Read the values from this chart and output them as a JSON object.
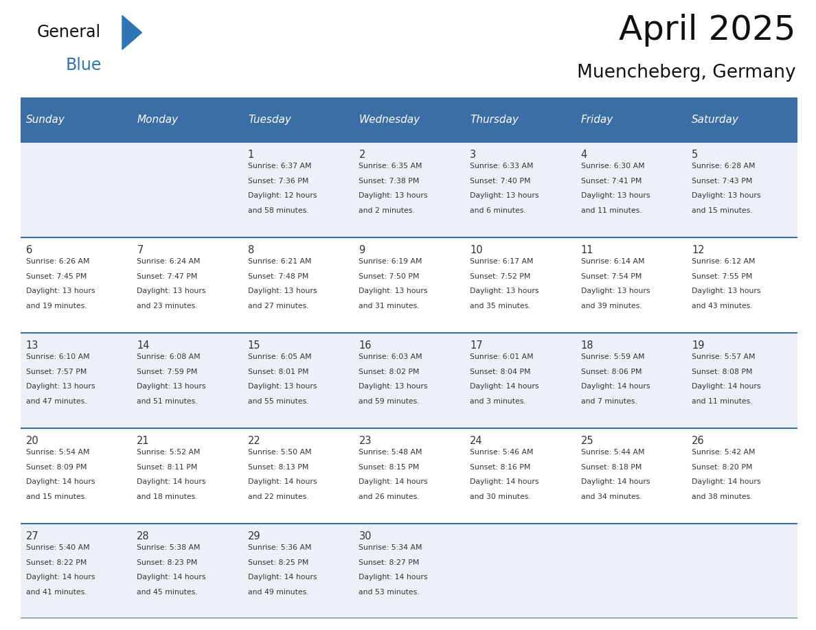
{
  "title": "April 2025",
  "subtitle": "Muencheberg, Germany",
  "header_bg_color": "#3a6ea5",
  "header_text_color": "#ffffff",
  "cell_bg_even": "#edf1f7",
  "cell_bg_odd": "#ffffff",
  "border_color": "#3a6ea5",
  "text_color": "#333333",
  "days_of_week": [
    "Sunday",
    "Monday",
    "Tuesday",
    "Wednesday",
    "Thursday",
    "Friday",
    "Saturday"
  ],
  "weeks": [
    [
      {
        "day": "",
        "info": ""
      },
      {
        "day": "",
        "info": ""
      },
      {
        "day": "1",
        "info": "Sunrise: 6:37 AM\nSunset: 7:36 PM\nDaylight: 12 hours\nand 58 minutes."
      },
      {
        "day": "2",
        "info": "Sunrise: 6:35 AM\nSunset: 7:38 PM\nDaylight: 13 hours\nand 2 minutes."
      },
      {
        "day": "3",
        "info": "Sunrise: 6:33 AM\nSunset: 7:40 PM\nDaylight: 13 hours\nand 6 minutes."
      },
      {
        "day": "4",
        "info": "Sunrise: 6:30 AM\nSunset: 7:41 PM\nDaylight: 13 hours\nand 11 minutes."
      },
      {
        "day": "5",
        "info": "Sunrise: 6:28 AM\nSunset: 7:43 PM\nDaylight: 13 hours\nand 15 minutes."
      }
    ],
    [
      {
        "day": "6",
        "info": "Sunrise: 6:26 AM\nSunset: 7:45 PM\nDaylight: 13 hours\nand 19 minutes."
      },
      {
        "day": "7",
        "info": "Sunrise: 6:24 AM\nSunset: 7:47 PM\nDaylight: 13 hours\nand 23 minutes."
      },
      {
        "day": "8",
        "info": "Sunrise: 6:21 AM\nSunset: 7:48 PM\nDaylight: 13 hours\nand 27 minutes."
      },
      {
        "day": "9",
        "info": "Sunrise: 6:19 AM\nSunset: 7:50 PM\nDaylight: 13 hours\nand 31 minutes."
      },
      {
        "day": "10",
        "info": "Sunrise: 6:17 AM\nSunset: 7:52 PM\nDaylight: 13 hours\nand 35 minutes."
      },
      {
        "day": "11",
        "info": "Sunrise: 6:14 AM\nSunset: 7:54 PM\nDaylight: 13 hours\nand 39 minutes."
      },
      {
        "day": "12",
        "info": "Sunrise: 6:12 AM\nSunset: 7:55 PM\nDaylight: 13 hours\nand 43 minutes."
      }
    ],
    [
      {
        "day": "13",
        "info": "Sunrise: 6:10 AM\nSunset: 7:57 PM\nDaylight: 13 hours\nand 47 minutes."
      },
      {
        "day": "14",
        "info": "Sunrise: 6:08 AM\nSunset: 7:59 PM\nDaylight: 13 hours\nand 51 minutes."
      },
      {
        "day": "15",
        "info": "Sunrise: 6:05 AM\nSunset: 8:01 PM\nDaylight: 13 hours\nand 55 minutes."
      },
      {
        "day": "16",
        "info": "Sunrise: 6:03 AM\nSunset: 8:02 PM\nDaylight: 13 hours\nand 59 minutes."
      },
      {
        "day": "17",
        "info": "Sunrise: 6:01 AM\nSunset: 8:04 PM\nDaylight: 14 hours\nand 3 minutes."
      },
      {
        "day": "18",
        "info": "Sunrise: 5:59 AM\nSunset: 8:06 PM\nDaylight: 14 hours\nand 7 minutes."
      },
      {
        "day": "19",
        "info": "Sunrise: 5:57 AM\nSunset: 8:08 PM\nDaylight: 14 hours\nand 11 minutes."
      }
    ],
    [
      {
        "day": "20",
        "info": "Sunrise: 5:54 AM\nSunset: 8:09 PM\nDaylight: 14 hours\nand 15 minutes."
      },
      {
        "day": "21",
        "info": "Sunrise: 5:52 AM\nSunset: 8:11 PM\nDaylight: 14 hours\nand 18 minutes."
      },
      {
        "day": "22",
        "info": "Sunrise: 5:50 AM\nSunset: 8:13 PM\nDaylight: 14 hours\nand 22 minutes."
      },
      {
        "day": "23",
        "info": "Sunrise: 5:48 AM\nSunset: 8:15 PM\nDaylight: 14 hours\nand 26 minutes."
      },
      {
        "day": "24",
        "info": "Sunrise: 5:46 AM\nSunset: 8:16 PM\nDaylight: 14 hours\nand 30 minutes."
      },
      {
        "day": "25",
        "info": "Sunrise: 5:44 AM\nSunset: 8:18 PM\nDaylight: 14 hours\nand 34 minutes."
      },
      {
        "day": "26",
        "info": "Sunrise: 5:42 AM\nSunset: 8:20 PM\nDaylight: 14 hours\nand 38 minutes."
      }
    ],
    [
      {
        "day": "27",
        "info": "Sunrise: 5:40 AM\nSunset: 8:22 PM\nDaylight: 14 hours\nand 41 minutes."
      },
      {
        "day": "28",
        "info": "Sunrise: 5:38 AM\nSunset: 8:23 PM\nDaylight: 14 hours\nand 45 minutes."
      },
      {
        "day": "29",
        "info": "Sunrise: 5:36 AM\nSunset: 8:25 PM\nDaylight: 14 hours\nand 49 minutes."
      },
      {
        "day": "30",
        "info": "Sunrise: 5:34 AM\nSunset: 8:27 PM\nDaylight: 14 hours\nand 53 minutes."
      },
      {
        "day": "",
        "info": ""
      },
      {
        "day": "",
        "info": ""
      },
      {
        "day": "",
        "info": ""
      }
    ]
  ],
  "logo_triangle_color": "#2e75b6",
  "figsize": [
    11.88,
    9.18
  ],
  "dpi": 100
}
